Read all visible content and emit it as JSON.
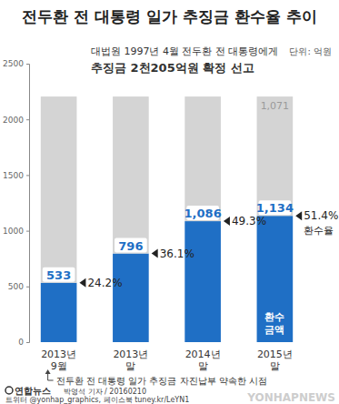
{
  "chart_data": {
    "type": "bar",
    "title": "전두환 전 대통령 일가 추징금 환수율 추이",
    "subtitle": [
      "대법원 1997년 4월 전두환 전 대통령에게",
      "추징금 2천205억원 확정 선고"
    ],
    "ylabel": "단위: 억원",
    "categories": [
      "2013년 9월",
      "2013년 말",
      "2014년 말",
      "2015년 말"
    ],
    "series": [
      {
        "name": "환수 금액",
        "color": "#1f6fc5",
        "values": [
          533,
          796,
          1086,
          1134
        ],
        "value_labels": [
          "533",
          "796",
          "1,086",
          "1,134"
        ]
      },
      {
        "color": "#d4d4d4",
        "values": [
          1672,
          1409,
          1119,
          1071
        ],
        "value_labels": [
          null,
          null,
          null,
          "1,071"
        ]
      }
    ],
    "rates": {
      "label": "환수율",
      "values": [
        24.2,
        36.1,
        49.3,
        51.4
      ],
      "value_labels": [
        "24.2%",
        "36.1%",
        "49.3%",
        "51.4%"
      ]
    },
    "annotation": "전두환 전 대통령 일가 추징금 자진납부 약속한 시점",
    "credits": [
      "박영석 기자 / 20160210",
      "트위터 @yonhap_graphics, 페이스북 tuney.kr/LeYN1"
    ],
    "source": "연합뉴스",
    "watermark": "YONHAPNEWS",
    "stacked": true,
    "data_labels": true,
    "grid": false,
    "ylim": [
      0,
      2500
    ],
    "yticks": [
      0,
      500,
      1000,
      1500,
      2000,
      2500
    ]
  }
}
